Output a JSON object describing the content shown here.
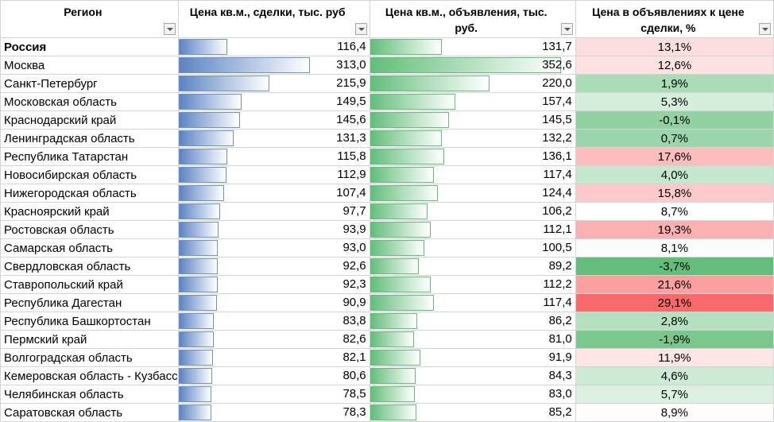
{
  "headers": {
    "region": "Регион",
    "deal_price": "Цена кв.м., сделки, тыс. руб",
    "ad_price": "Цена кв.м., объявления, тыс. руб.",
    "ratio": "Цена в объявлениях к цене сделки, %"
  },
  "colors": {
    "deal_bar": "#5b84c4",
    "ad_bar": "#63be7b",
    "positive_scale": "#f8696b",
    "negative_scale": "#63be7b"
  },
  "rows": [
    {
      "region": "Россия",
      "deal": "116,4",
      "ad": "131,7",
      "pct": "13,1%",
      "bold": true
    },
    {
      "region": "Москва",
      "deal": "313,0",
      "ad": "352,6",
      "pct": "12,6%"
    },
    {
      "region": "Санкт-Петербург",
      "deal": "215,9",
      "ad": "220,0",
      "pct": "1,9%"
    },
    {
      "region": "Московская область",
      "deal": "149,5",
      "ad": "157,4",
      "pct": "5,3%"
    },
    {
      "region": "Краснодарский край",
      "deal": "145,6",
      "ad": "145,5",
      "pct": "-0,1%"
    },
    {
      "region": "Ленинградская область",
      "deal": "131,3",
      "ad": "132,2",
      "pct": "0,7%"
    },
    {
      "region": "Республика Татарстан",
      "deal": "115,8",
      "ad": "136,1",
      "pct": "17,6%"
    },
    {
      "region": "Новосибирская область",
      "deal": "112,9",
      "ad": "117,4",
      "pct": "4,0%"
    },
    {
      "region": "Нижегородская область",
      "deal": "107,4",
      "ad": "124,4",
      "pct": "15,8%"
    },
    {
      "region": "Красноярский край",
      "deal": "97,7",
      "ad": "106,2",
      "pct": "8,7%"
    },
    {
      "region": "Ростовская область",
      "deal": "93,9",
      "ad": "112,1",
      "pct": "19,3%"
    },
    {
      "region": "Самарская область",
      "deal": "93,0",
      "ad": "100,5",
      "pct": "8,1%"
    },
    {
      "region": "Свердловская область",
      "deal": "92,6",
      "ad": "89,2",
      "pct": "-3,7%"
    },
    {
      "region": "Ставропольский край",
      "deal": "92,3",
      "ad": "112,2",
      "pct": "21,6%"
    },
    {
      "region": "Республика Дагестан",
      "deal": "90,9",
      "ad": "117,4",
      "pct": "29,1%"
    },
    {
      "region": "Республика Башкортостан",
      "deal": "83,8",
      "ad": "86,2",
      "pct": "2,8%"
    },
    {
      "region": "Пермский край",
      "deal": "82,6",
      "ad": "81,0",
      "pct": "-1,9%"
    },
    {
      "region": "Волгоградская область",
      "deal": "82,1",
      "ad": "91,9",
      "pct": "11,9%"
    },
    {
      "region": "Кемеровская область - Кузбасс",
      "deal": "80,6",
      "ad": "84,3",
      "pct": "4,6%"
    },
    {
      "region": "Челябинская область",
      "deal": "78,5",
      "ad": "83,0",
      "pct": "5,7%"
    },
    {
      "region": "Саратовская область",
      "deal": "78,3",
      "ad": "85,2",
      "pct": "8,9%"
    }
  ]
}
